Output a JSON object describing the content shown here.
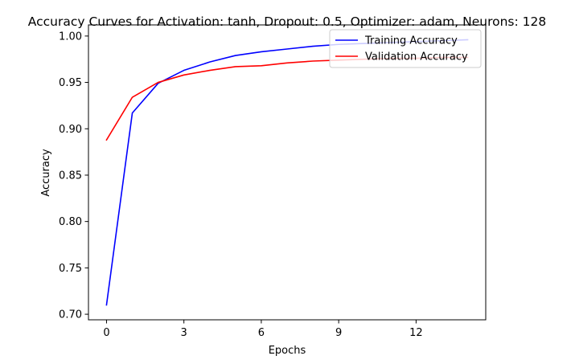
{
  "chart_data": {
    "type": "line",
    "title": "Accuracy Curves for Activation: tanh, Dropout: 0.5, Optimizer: adam, Neurons: 128",
    "xlabel": "Epochs",
    "ylabel": "Accuracy",
    "xlim": [
      -0.7,
      14.7
    ],
    "ylim": [
      0.694,
      1.012
    ],
    "xticks": [
      0,
      3,
      6,
      9,
      12
    ],
    "yticks": [
      0.7,
      0.75,
      0.8,
      0.85,
      0.9,
      0.95,
      1.0
    ],
    "ytick_labels": [
      "0.70",
      "0.75",
      "0.80",
      "0.85",
      "0.90",
      "0.95",
      "1.00"
    ],
    "grid": false,
    "legend_position": "top-right",
    "x": [
      0,
      1,
      2,
      3,
      4,
      5,
      6,
      7,
      8,
      9,
      10,
      11,
      12,
      13,
      14
    ],
    "series": [
      {
        "name": "Training Accuracy",
        "color": "#0000ff",
        "values": [
          0.71,
          0.917,
          0.949,
          0.963,
          0.972,
          0.979,
          0.983,
          0.986,
          0.989,
          0.991,
          0.992,
          0.993,
          0.994,
          0.995,
          0.996
        ]
      },
      {
        "name": "Validation Accuracy",
        "color": "#ff0000",
        "values": [
          0.888,
          0.934,
          0.95,
          0.958,
          0.963,
          0.967,
          0.968,
          0.971,
          0.973,
          0.974,
          0.975,
          0.976,
          0.976,
          0.977,
          0.977
        ]
      }
    ]
  }
}
